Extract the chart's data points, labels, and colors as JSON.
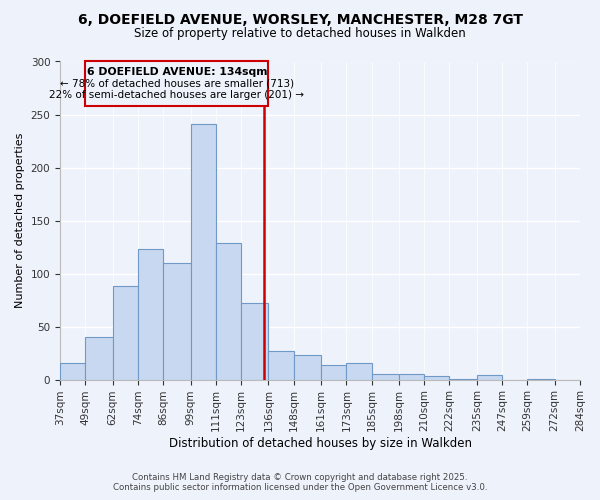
{
  "title1": "6, DOEFIELD AVENUE, WORSLEY, MANCHESTER, M28 7GT",
  "title2": "Size of property relative to detached houses in Walkden",
  "xlabel": "Distribution of detached houses by size in Walkden",
  "ylabel": "Number of detached properties",
  "bar_color": "#c8d8f0",
  "bar_edge_color": "#7099c8",
  "vline_x": 134,
  "vline_color": "#cc0000",
  "annotation_title": "6 DOEFIELD AVENUE: 134sqm",
  "annotation_line1": "← 78% of detached houses are smaller (713)",
  "annotation_line2": "22% of semi-detached houses are larger (201) →",
  "bins": [
    37,
    49,
    62,
    74,
    86,
    99,
    111,
    123,
    136,
    148,
    161,
    173,
    185,
    198,
    210,
    222,
    235,
    247,
    259,
    272,
    284
  ],
  "counts": [
    16,
    40,
    88,
    123,
    110,
    241,
    129,
    72,
    27,
    23,
    14,
    16,
    5,
    5,
    3,
    1,
    4,
    0,
    1,
    0
  ],
  "ylim": [
    0,
    300
  ],
  "yticks": [
    0,
    50,
    100,
    150,
    200,
    250,
    300
  ],
  "footer1": "Contains HM Land Registry data © Crown copyright and database right 2025.",
  "footer2": "Contains public sector information licensed under the Open Government Licence v3.0.",
  "background_color": "#eef2fb"
}
